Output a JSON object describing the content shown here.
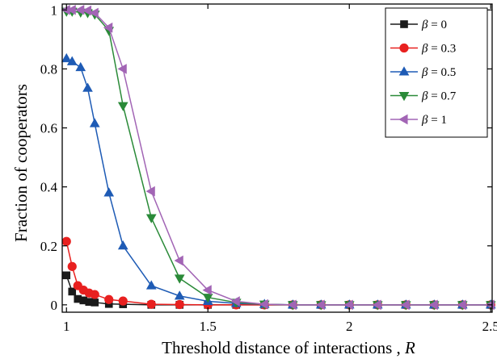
{
  "chart_data": {
    "type": "line",
    "title": "",
    "xlabel": "Threshold distance of interactions , ",
    "xlabel_var": "R",
    "ylabel": "Fraction of cooperators",
    "xlim": [
      0.985,
      2.505
    ],
    "ylim": [
      -0.025,
      1.02
    ],
    "x_ticks": [
      1,
      1.5,
      2,
      2.5
    ],
    "x_tick_labels": [
      "1",
      "1.5",
      "2",
      "2.5"
    ],
    "y_ticks": [
      0,
      0.2,
      0.4,
      0.6,
      0.8,
      1
    ],
    "y_tick_labels": [
      "0",
      "0.2",
      "0.4",
      "0.6",
      "0.8",
      "1"
    ],
    "grid": false,
    "legend_position": "top-right",
    "series": [
      {
        "name": "β = 0",
        "legend_var": "β",
        "legend_value": " = 0",
        "color": "#1a1a1a",
        "marker": "square",
        "points": [
          [
            1.0,
            0.1
          ],
          [
            1.02,
            0.045
          ],
          [
            1.04,
            0.02
          ],
          [
            1.06,
            0.015
          ],
          [
            1.08,
            0.01
          ],
          [
            1.1,
            0.008
          ],
          [
            1.15,
            0.003
          ],
          [
            1.2,
            0.002
          ],
          [
            1.3,
            0.0
          ],
          [
            1.4,
            0.0
          ],
          [
            1.5,
            0.0
          ],
          [
            1.6,
            0.0
          ],
          [
            1.7,
            0.0
          ],
          [
            1.8,
            0.0
          ],
          [
            1.9,
            0.0
          ],
          [
            2.0,
            0.0
          ],
          [
            2.1,
            0.0
          ],
          [
            2.2,
            0.0
          ],
          [
            2.3,
            0.0
          ],
          [
            2.4,
            0.0
          ],
          [
            2.5,
            0.0
          ]
        ]
      },
      {
        "name": "β = 0.3",
        "legend_var": "β",
        "legend_value": " = 0.3",
        "color": "#e8201f",
        "marker": "circle",
        "points": [
          [
            1.0,
            0.215
          ],
          [
            1.02,
            0.13
          ],
          [
            1.04,
            0.065
          ],
          [
            1.06,
            0.05
          ],
          [
            1.08,
            0.04
          ],
          [
            1.1,
            0.035
          ],
          [
            1.15,
            0.018
          ],
          [
            1.2,
            0.013
          ],
          [
            1.3,
            0.002
          ],
          [
            1.4,
            0.001
          ],
          [
            1.5,
            0.0
          ],
          [
            1.6,
            0.0
          ],
          [
            1.7,
            0.0
          ],
          [
            1.8,
            0.0
          ],
          [
            1.9,
            0.0
          ],
          [
            2.0,
            0.0
          ],
          [
            2.1,
            0.0
          ],
          [
            2.2,
            0.0
          ],
          [
            2.3,
            0.0
          ],
          [
            2.4,
            0.0
          ],
          [
            2.5,
            0.0
          ]
        ]
      },
      {
        "name": "β = 0.5",
        "legend_var": "β",
        "legend_value": " = 0.5",
        "color": "#1e5bb5",
        "marker": "triangle-up",
        "points": [
          [
            1.0,
            0.835
          ],
          [
            1.02,
            0.825
          ],
          [
            1.05,
            0.805
          ],
          [
            1.075,
            0.735
          ],
          [
            1.1,
            0.615
          ],
          [
            1.15,
            0.38
          ],
          [
            1.2,
            0.2
          ],
          [
            1.3,
            0.065
          ],
          [
            1.4,
            0.03
          ],
          [
            1.5,
            0.012
          ],
          [
            1.6,
            0.005
          ],
          [
            1.7,
            0.002
          ],
          [
            1.8,
            0.0
          ],
          [
            1.9,
            0.0
          ],
          [
            2.0,
            0.0
          ],
          [
            2.1,
            0.0
          ],
          [
            2.2,
            0.0
          ],
          [
            2.3,
            0.0
          ],
          [
            2.4,
            0.0
          ],
          [
            2.5,
            0.0
          ]
        ]
      },
      {
        "name": "β = 0.7",
        "legend_var": "β",
        "legend_value": " = 0.7",
        "color": "#2a8a38",
        "marker": "triangle-down",
        "points": [
          [
            1.0,
            0.995
          ],
          [
            1.02,
            0.995
          ],
          [
            1.05,
            0.992
          ],
          [
            1.075,
            0.99
          ],
          [
            1.1,
            0.985
          ],
          [
            1.15,
            0.93
          ],
          [
            1.2,
            0.675
          ],
          [
            1.3,
            0.295
          ],
          [
            1.4,
            0.09
          ],
          [
            1.5,
            0.025
          ],
          [
            1.6,
            0.008
          ],
          [
            1.7,
            0.002
          ],
          [
            1.8,
            0.0
          ],
          [
            1.9,
            0.0
          ],
          [
            2.0,
            0.0
          ],
          [
            2.1,
            0.0
          ],
          [
            2.2,
            0.0
          ],
          [
            2.3,
            0.0
          ],
          [
            2.4,
            0.0
          ],
          [
            2.5,
            0.0
          ]
        ]
      },
      {
        "name": "β = 1",
        "legend_var": "β",
        "legend_value": " = 1",
        "color": "#a265b5",
        "marker": "triangle-left",
        "points": [
          [
            1.0,
            1.0
          ],
          [
            1.02,
            1.0
          ],
          [
            1.05,
            1.0
          ],
          [
            1.075,
            0.998
          ],
          [
            1.1,
            0.99
          ],
          [
            1.15,
            0.94
          ],
          [
            1.2,
            0.8
          ],
          [
            1.3,
            0.385
          ],
          [
            1.4,
            0.15
          ],
          [
            1.5,
            0.05
          ],
          [
            1.6,
            0.012
          ],
          [
            1.7,
            0.002
          ],
          [
            1.8,
            0.0
          ],
          [
            1.9,
            0.0
          ],
          [
            2.0,
            0.0
          ],
          [
            2.1,
            0.0
          ],
          [
            2.2,
            0.0
          ],
          [
            2.3,
            0.0
          ],
          [
            2.4,
            0.0
          ],
          [
            2.5,
            0.0
          ]
        ]
      }
    ]
  }
}
